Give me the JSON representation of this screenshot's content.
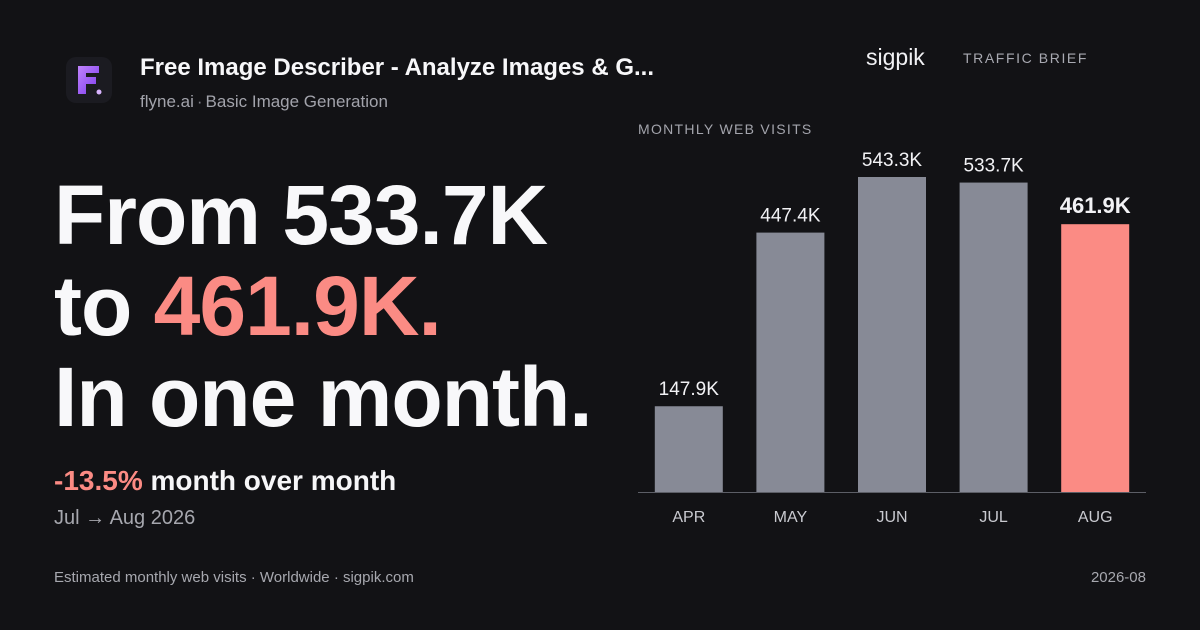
{
  "header": {
    "title": "Free Image Describer - Analyze Images & G...",
    "domain": "flyne.ai",
    "separator": "·",
    "category": "Basic Image Generation",
    "brand": "sigpik",
    "tag": "TRAFFIC BRIEF"
  },
  "headline": {
    "line1": "From 533.7K",
    "line2_prefix": "to",
    "line2_value": "461.9K.",
    "line3": "In one month."
  },
  "change": {
    "value": "-13.5%",
    "label": "month over month",
    "period": "Jul → Aug 2026"
  },
  "footer": {
    "source": "Estimated monthly web visits · Worldwide · sigpik.com",
    "date": "2026-08"
  },
  "colors": {
    "background": "#121215",
    "bar": "#878a96",
    "highlight": "#fb8b84",
    "logo": "#a855f7"
  },
  "chart_data": {
    "type": "bar",
    "title": "MONTHLY WEB VISITS",
    "categories": [
      "APR",
      "MAY",
      "JUN",
      "JUL",
      "AUG"
    ],
    "values": [
      147.9,
      447.4,
      543.3,
      533.7,
      461.9
    ],
    "value_labels": [
      "147.9K",
      "447.4K",
      "543.3K",
      "533.7K",
      "461.9K"
    ],
    "unit": "K",
    "highlight_index": 4,
    "ylim": [
      0,
      543.3
    ],
    "grid": false,
    "legend": "none"
  }
}
